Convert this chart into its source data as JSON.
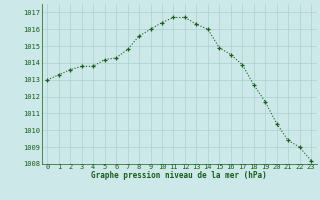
{
  "x": [
    0,
    1,
    2,
    3,
    4,
    5,
    6,
    7,
    8,
    9,
    10,
    11,
    12,
    13,
    14,
    15,
    16,
    17,
    18,
    19,
    20,
    21,
    22,
    23
  ],
  "y": [
    1013.0,
    1013.3,
    1013.6,
    1013.8,
    1013.8,
    1014.2,
    1014.3,
    1014.8,
    1015.6,
    1016.0,
    1016.4,
    1016.7,
    1016.7,
    1016.3,
    1016.0,
    1014.9,
    1014.5,
    1013.9,
    1012.7,
    1011.7,
    1010.4,
    1009.4,
    1009.0,
    1008.2
  ],
  "xlim": [
    -0.5,
    23.5
  ],
  "ylim": [
    1008,
    1017.5
  ],
  "yticks": [
    1008,
    1009,
    1010,
    1011,
    1012,
    1013,
    1014,
    1015,
    1016,
    1017
  ],
  "xticks": [
    0,
    1,
    2,
    3,
    4,
    5,
    6,
    7,
    8,
    9,
    10,
    11,
    12,
    13,
    14,
    15,
    16,
    17,
    18,
    19,
    20,
    21,
    22,
    23
  ],
  "xlabel": "Graphe pression niveau de la mer (hPa)",
  "line_color": "#1a5c1a",
  "marker_color": "#1a5c1a",
  "bg_color": "#cce8e8",
  "grid_color": "#aad0d0",
  "label_color": "#1a5c1a",
  "tick_label_color": "#1a5c1a"
}
